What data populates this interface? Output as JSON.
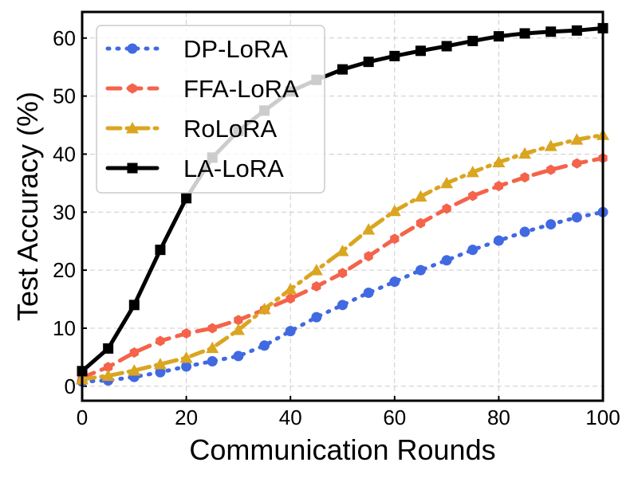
{
  "chart_data": {
    "type": "line",
    "title": "",
    "xlabel": "Communication Rounds",
    "ylabel": "Test Accuracy (%)",
    "xlim": [
      0,
      100
    ],
    "ylim": [
      -2.5,
      64.5
    ],
    "xticks": [
      0,
      20,
      40,
      60,
      80,
      100
    ],
    "yticks": [
      0,
      10,
      20,
      30,
      40,
      50,
      60
    ],
    "grid": true,
    "legend_position": "upper-left",
    "x": [
      0,
      5,
      10,
      15,
      20,
      25,
      30,
      35,
      40,
      45,
      50,
      55,
      60,
      65,
      70,
      75,
      80,
      85,
      90,
      95,
      100
    ],
    "series": [
      {
        "name": "DP-LoRA",
        "color": "#4169e1",
        "line_style": "dotted",
        "marker": "circle",
        "values": [
          0.8,
          1.0,
          1.6,
          2.4,
          3.4,
          4.3,
          5.2,
          7.0,
          9.5,
          11.9,
          14.0,
          16.1,
          18.0,
          20.0,
          21.7,
          23.5,
          25.1,
          26.6,
          27.9,
          29.1,
          30.0
        ]
      },
      {
        "name": "FFA-LoRA",
        "color": "#f4634a",
        "line_style": "dashed",
        "marker": "hexagon",
        "values": [
          1.5,
          3.3,
          5.8,
          7.8,
          9.1,
          10.0,
          11.4,
          13.2,
          15.1,
          17.2,
          19.5,
          22.4,
          25.4,
          28.1,
          30.6,
          32.8,
          34.5,
          36.0,
          37.3,
          38.4,
          39.3
        ]
      },
      {
        "name": "RoLoRA",
        "color": "#daa520",
        "line_style": "dashdot",
        "marker": "triangle",
        "values": [
          1.2,
          1.8,
          2.7,
          3.8,
          4.9,
          6.6,
          9.7,
          13.3,
          16.7,
          20.0,
          23.3,
          27.0,
          30.2,
          32.7,
          35.0,
          36.9,
          38.6,
          40.1,
          41.4,
          42.5,
          43.3
        ]
      },
      {
        "name": "LA-LoRA",
        "color": "#000000",
        "line_style": "solid",
        "marker": "square",
        "values": [
          2.6,
          6.5,
          14.0,
          23.5,
          32.4,
          39.4,
          44.0,
          47.5,
          50.8,
          52.8,
          54.6,
          55.9,
          56.9,
          57.8,
          58.6,
          59.5,
          60.3,
          60.8,
          61.1,
          61.3,
          61.7
        ]
      }
    ]
  }
}
